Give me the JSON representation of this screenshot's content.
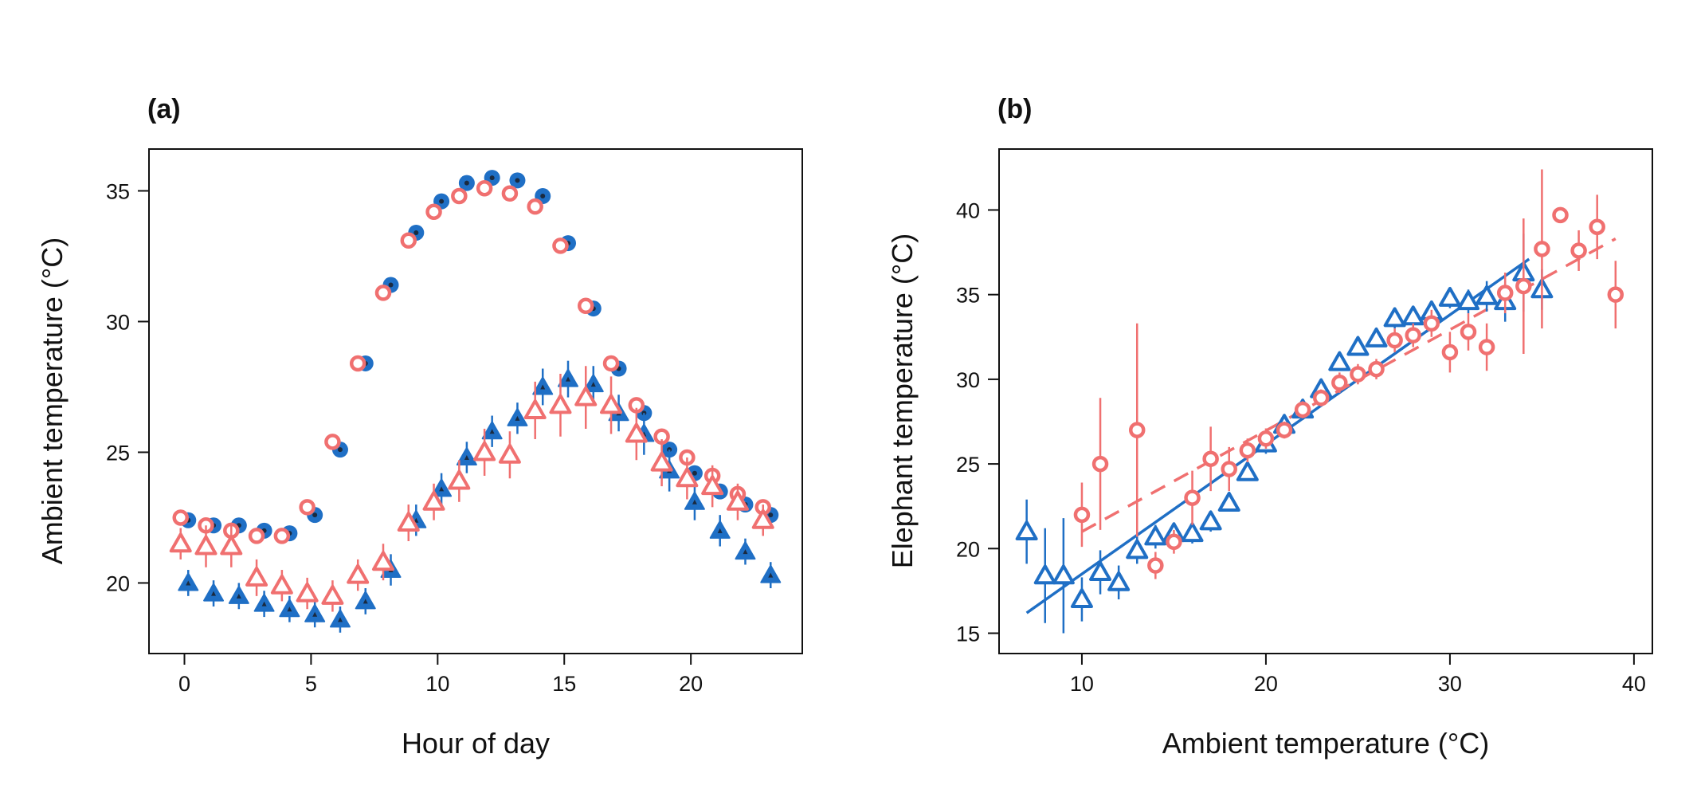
{
  "colors": {
    "blue": "#1f6fc5",
    "red": "#f07070",
    "dark": "#1a2a40"
  },
  "chart_data": [
    {
      "type": "scatter",
      "panel_label": "(a)",
      "xlabel": "Hour of day",
      "ylabel": "Ambient temperature (°C)",
      "xlim": [
        -1.4,
        24.4
      ],
      "ylim": [
        17.3,
        36.6
      ],
      "xticks": [
        0,
        5,
        10,
        15,
        20
      ],
      "yticks": [
        20,
        25,
        30,
        35
      ],
      "series": [
        {
          "marker": "filled-circle",
          "color": "blue",
          "offset": 0.15,
          "x": [
            0,
            1,
            2,
            3,
            4,
            5,
            6,
            7,
            8,
            9,
            10,
            11,
            12,
            13,
            14,
            15,
            16,
            17,
            18,
            19,
            20,
            21,
            22,
            23
          ],
          "y": [
            22.4,
            22.2,
            22.2,
            22.0,
            21.9,
            22.6,
            25.1,
            28.4,
            31.4,
            33.4,
            34.6,
            35.3,
            35.5,
            35.4,
            34.8,
            33.0,
            30.5,
            28.2,
            26.5,
            25.1,
            24.2,
            23.5,
            23.0,
            22.6
          ]
        },
        {
          "marker": "open-circle",
          "color": "red",
          "offset": -0.15,
          "x": [
            0,
            1,
            2,
            3,
            4,
            5,
            6,
            7,
            8,
            9,
            10,
            11,
            12,
            13,
            14,
            15,
            16,
            17,
            18,
            19,
            20,
            21,
            22,
            23
          ],
          "y": [
            22.5,
            22.2,
            22.0,
            21.8,
            21.8,
            22.9,
            25.4,
            28.4,
            31.1,
            33.1,
            34.2,
            34.8,
            35.1,
            34.9,
            34.4,
            32.9,
            30.6,
            28.4,
            26.8,
            25.6,
            24.8,
            24.1,
            23.4,
            22.9
          ]
        },
        {
          "marker": "filled-triangle",
          "color": "blue",
          "offset": 0.15,
          "x": [
            0,
            1,
            2,
            3,
            4,
            5,
            6,
            7,
            8,
            9,
            10,
            11,
            12,
            13,
            14,
            15,
            16,
            17,
            18,
            19,
            20,
            21,
            22,
            23
          ],
          "y": [
            20.0,
            19.6,
            19.5,
            19.2,
            19.0,
            18.8,
            18.6,
            19.3,
            20.5,
            22.4,
            23.6,
            24.8,
            25.8,
            26.3,
            27.5,
            27.8,
            27.6,
            26.5,
            25.7,
            24.3,
            23.1,
            22.0,
            21.2,
            20.3
          ],
          "err": [
            0.5,
            0.5,
            0.5,
            0.5,
            0.5,
            0.5,
            0.5,
            0.5,
            0.6,
            0.6,
            0.6,
            0.6,
            0.6,
            0.6,
            0.7,
            0.7,
            0.7,
            0.7,
            0.8,
            0.8,
            0.7,
            0.6,
            0.5,
            0.5
          ]
        },
        {
          "marker": "open-triangle",
          "color": "red",
          "offset": -0.15,
          "x": [
            0,
            1,
            2,
            3,
            4,
            5,
            6,
            7,
            8,
            9,
            10,
            11,
            12,
            13,
            14,
            15,
            16,
            17,
            18,
            19,
            20,
            21,
            22,
            23
          ],
          "y": [
            21.5,
            21.4,
            21.4,
            20.2,
            19.9,
            19.6,
            19.5,
            20.3,
            20.8,
            22.3,
            23.1,
            23.9,
            25.0,
            24.9,
            26.6,
            26.8,
            27.1,
            26.8,
            25.7,
            24.6,
            24.0,
            23.7,
            23.1,
            22.4
          ],
          "err": [
            0.6,
            0.8,
            0.8,
            0.7,
            0.6,
            0.6,
            0.6,
            0.6,
            0.7,
            0.7,
            0.7,
            0.8,
            0.9,
            0.9,
            1.1,
            1.2,
            1.2,
            1.1,
            1.0,
            0.9,
            0.8,
            0.8,
            0.7,
            0.6
          ]
        }
      ]
    },
    {
      "type": "scatter",
      "panel_label": "(b)",
      "xlabel": "Ambient temperature (°C)",
      "ylabel": "Elephant temperature (°C)",
      "xlim": [
        5.5,
        41.0
      ],
      "ylim": [
        13.8,
        43.6
      ],
      "xticks": [
        10,
        20,
        30,
        40
      ],
      "yticks": [
        15,
        20,
        25,
        30,
        35,
        40
      ],
      "series": [
        {
          "marker": "open-triangle",
          "color": "blue",
          "x": [
            7,
            8,
            9,
            10,
            11,
            12,
            13,
            14,
            15,
            16,
            17,
            18,
            19,
            20,
            21,
            22,
            23,
            24,
            25,
            26,
            27,
            28,
            29,
            30,
            31,
            32,
            33,
            34,
            35
          ],
          "y": [
            21.0,
            18.4,
            18.4,
            17.0,
            18.6,
            18.0,
            19.9,
            20.7,
            20.9,
            20.9,
            21.6,
            22.7,
            24.5,
            26.2,
            27.3,
            28.2,
            29.4,
            31.0,
            31.9,
            32.4,
            33.6,
            33.7,
            34.0,
            34.8,
            34.6,
            34.9,
            34.6,
            36.3,
            35.3
          ],
          "err": [
            1.9,
            2.8,
            3.4,
            1.3,
            1.3,
            1.0,
            0.8,
            0.7,
            0.6,
            0.6,
            0.6,
            0.5,
            0.5,
            0.6,
            0.6,
            0.6,
            0.5,
            0.5,
            0.5,
            0.5,
            0.6,
            0.6,
            0.6,
            0.6,
            0.7,
            0.9,
            1.2,
            2.3,
            1.2
          ]
        },
        {
          "marker": "open-circle",
          "color": "red",
          "x": [
            10,
            11,
            13,
            14,
            15,
            16,
            17,
            18,
            19,
            20,
            21,
            22,
            23,
            24,
            25,
            26,
            27,
            28,
            29,
            30,
            31,
            32,
            33,
            34,
            35,
            36,
            37,
            38,
            39
          ],
          "y": [
            22.0,
            25.0,
            27.0,
            19.0,
            20.4,
            23.0,
            25.3,
            24.7,
            25.8,
            26.5,
            27.0,
            28.2,
            28.9,
            29.8,
            30.3,
            30.6,
            32.3,
            32.6,
            33.3,
            31.6,
            32.8,
            31.9,
            35.1,
            35.5,
            37.7,
            39.7,
            37.6,
            39.0,
            35.0
          ],
          "err": [
            1.9,
            3.9,
            6.3,
            0.8,
            0.7,
            1.6,
            1.9,
            1.3,
            0.7,
            0.6,
            0.5,
            0.5,
            0.5,
            0.6,
            0.6,
            0.6,
            0.7,
            0.7,
            0.8,
            1.2,
            1.1,
            1.4,
            1.2,
            4.0,
            4.7,
            0.4,
            1.2,
            1.9,
            2.0
          ]
        }
      ],
      "fits": [
        {
          "color": "blue",
          "style": "solid",
          "x": [
            7,
            34.3
          ],
          "y": [
            16.2,
            37.1
          ]
        },
        {
          "color": "red",
          "style": "dashed",
          "x": [
            10,
            39
          ],
          "y": [
            21.0,
            38.3
          ]
        }
      ]
    }
  ]
}
